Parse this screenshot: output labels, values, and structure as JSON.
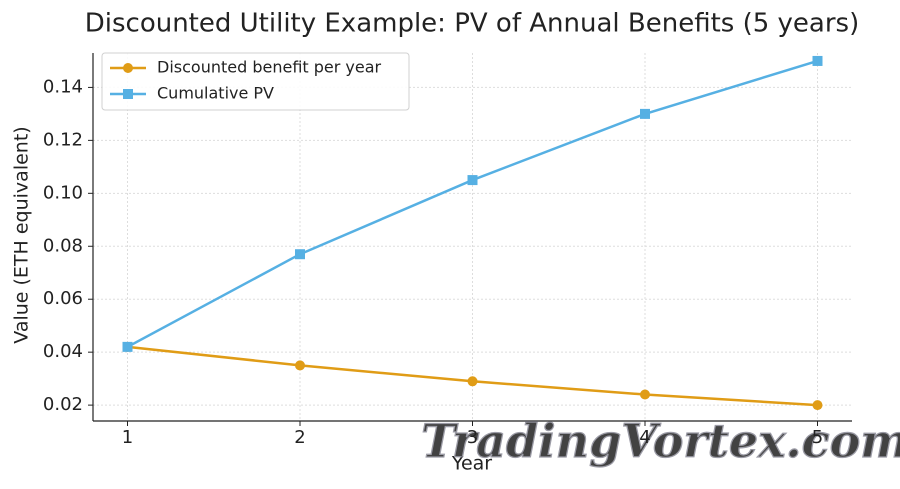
{
  "chart_data": {
    "type": "line",
    "title": "Discounted Utility Example: PV of Annual Benefits (5 years)",
    "x_label": "Year",
    "y_label": "Value (ETH equivalent)",
    "x": [
      1,
      2,
      3,
      4,
      5
    ],
    "series": [
      {
        "name": "Discounted benefit per year",
        "color": "#e09c16",
        "marker": "circle",
        "values": [
          0.042,
          0.035,
          0.029,
          0.024,
          0.02
        ]
      },
      {
        "name": "Cumulative PV",
        "color": "#56b0e3",
        "marker": "square",
        "values": [
          0.042,
          0.077,
          0.105,
          0.13,
          0.15
        ]
      }
    ],
    "xlim": [
      0.8,
      5.2
    ],
    "ylim": [
      0.014,
      0.153
    ],
    "xticks": [
      1,
      2,
      3,
      4,
      5
    ],
    "yticks": [
      0.02,
      0.04,
      0.06,
      0.08,
      {
        "value": 0.1,
        "label": "0.10"
      },
      0.12,
      0.14
    ],
    "grid": true,
    "legend": "upper left",
    "watermark": "TradingVortex.com"
  }
}
